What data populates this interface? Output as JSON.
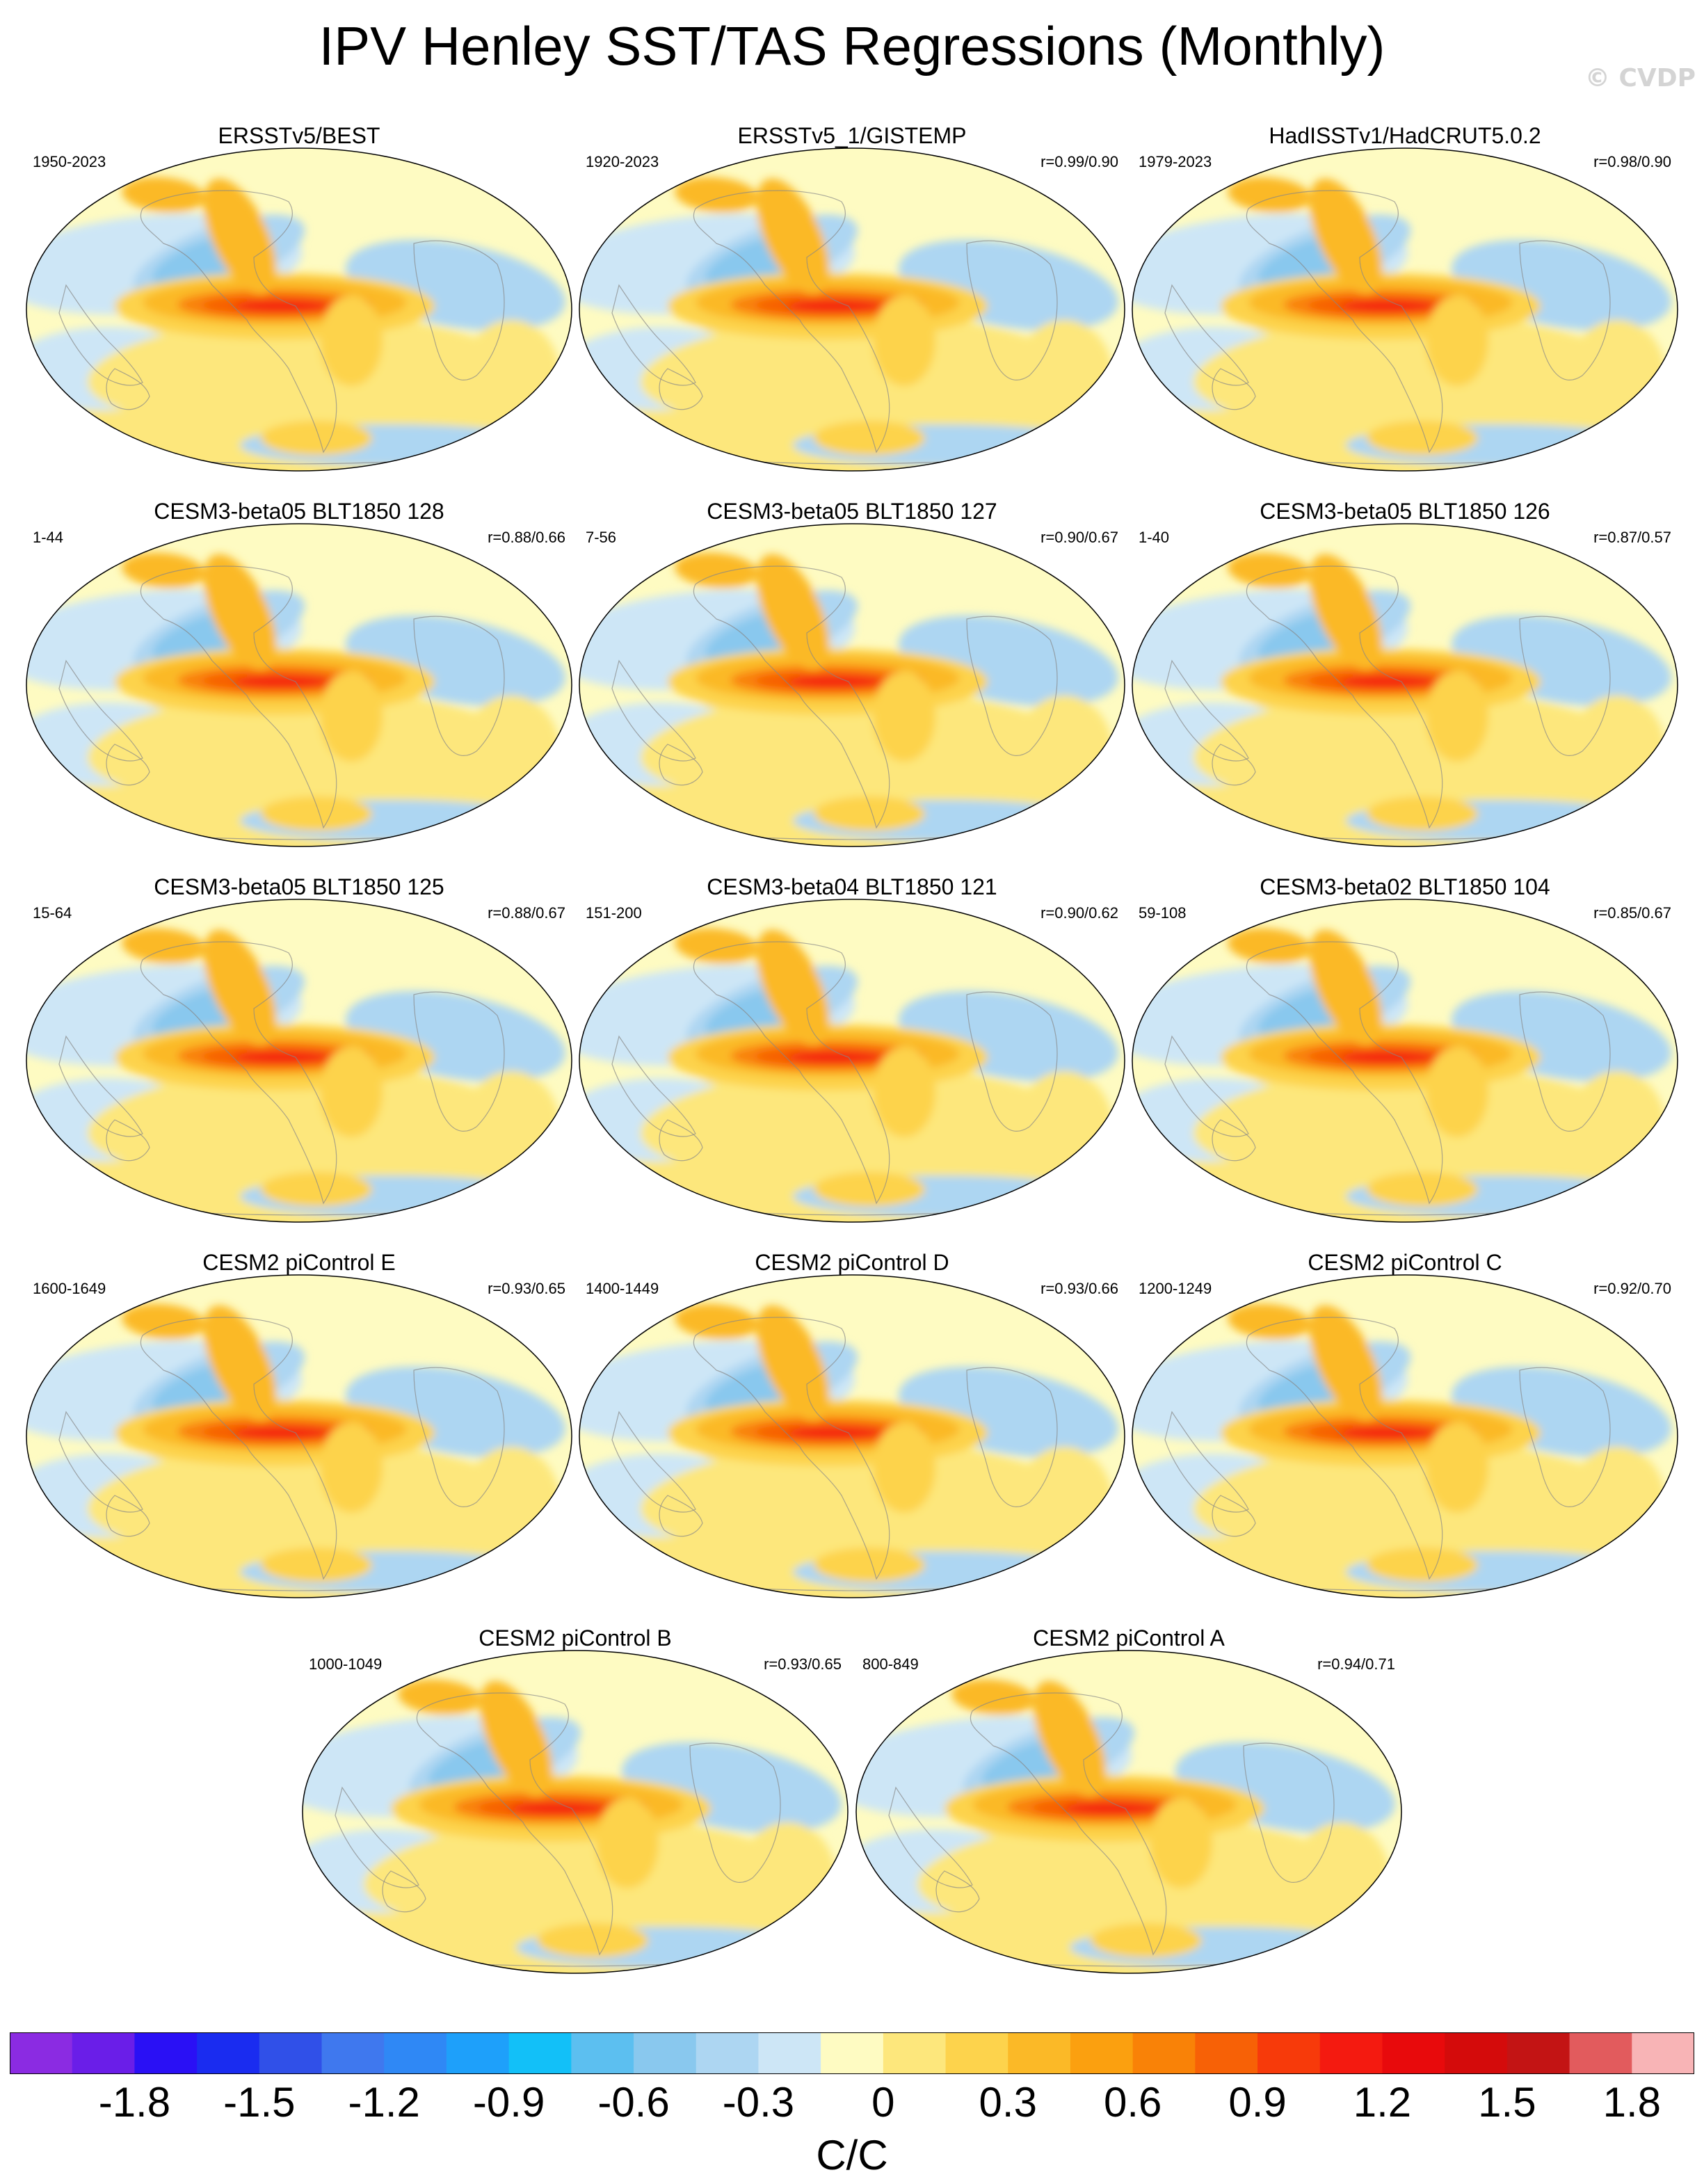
{
  "title": "IPV Henley SST/TAS Regressions (Monthly)",
  "watermark": "© CVDP",
  "panels": [
    {
      "title": "ERSSTv5/BEST",
      "years": "1950-2023",
      "corr": ""
    },
    {
      "title": "ERSSTv5_1/GISTEMP",
      "years": "1920-2023",
      "corr": "r=0.99/0.90"
    },
    {
      "title": "HadISSTv1/HadCRUT5.0.2",
      "years": "1979-2023",
      "corr": "r=0.98/0.90"
    },
    {
      "title": "CESM3-beta05 BLT1850 128",
      "years": "1-44",
      "corr": "r=0.88/0.66"
    },
    {
      "title": "CESM3-beta05 BLT1850 127",
      "years": "7-56",
      "corr": "r=0.90/0.67"
    },
    {
      "title": "CESM3-beta05 BLT1850 126",
      "years": "1-40",
      "corr": "r=0.87/0.57"
    },
    {
      "title": "CESM3-beta05 BLT1850 125",
      "years": "15-64",
      "corr": "r=0.88/0.67"
    },
    {
      "title": "CESM3-beta04 BLT1850 121",
      "years": "151-200",
      "corr": "r=0.90/0.62"
    },
    {
      "title": "CESM3-beta02 BLT1850 104",
      "years": "59-108",
      "corr": "r=0.85/0.67"
    },
    {
      "title": "CESM2 piControl E",
      "years": "1600-1649",
      "corr": "r=0.93/0.65"
    },
    {
      "title": "CESM2 piControl D",
      "years": "1400-1449",
      "corr": "r=0.93/0.66"
    },
    {
      "title": "CESM2 piControl C",
      "years": "1200-1249",
      "corr": "r=0.92/0.70"
    },
    {
      "title": "CESM2 piControl B",
      "years": "1000-1049",
      "corr": "r=0.93/0.65"
    },
    {
      "title": "CESM2 piControl A",
      "years": "800-849",
      "corr": "r=0.94/0.71"
    }
  ],
  "colorbar": {
    "colors": [
      "#8b2be2",
      "#6a1ee8",
      "#2a10f5",
      "#1a2cf0",
      "#3050e8",
      "#3f78ee",
      "#2f88f5",
      "#1ea0fa",
      "#12c0f8",
      "#5cbff0",
      "#89c8ee",
      "#add6f2",
      "#cde6f6",
      "#fefbc2",
      "#fde77c",
      "#fdd34c",
      "#fbb927",
      "#fba00f",
      "#f98207",
      "#f76106",
      "#f73a0a",
      "#f41a10",
      "#e80a0c",
      "#d40b0b",
      "#c31414",
      "#e25b5d",
      "#f8b4b6"
    ],
    "tick_labels": [
      "-1.8",
      "-1.5",
      "-1.2",
      "-0.9",
      "-0.6",
      "-0.3",
      "0",
      "0.3",
      "0.6",
      "0.9",
      "1.2",
      "1.5",
      "1.8"
    ],
    "units": "C/C"
  }
}
